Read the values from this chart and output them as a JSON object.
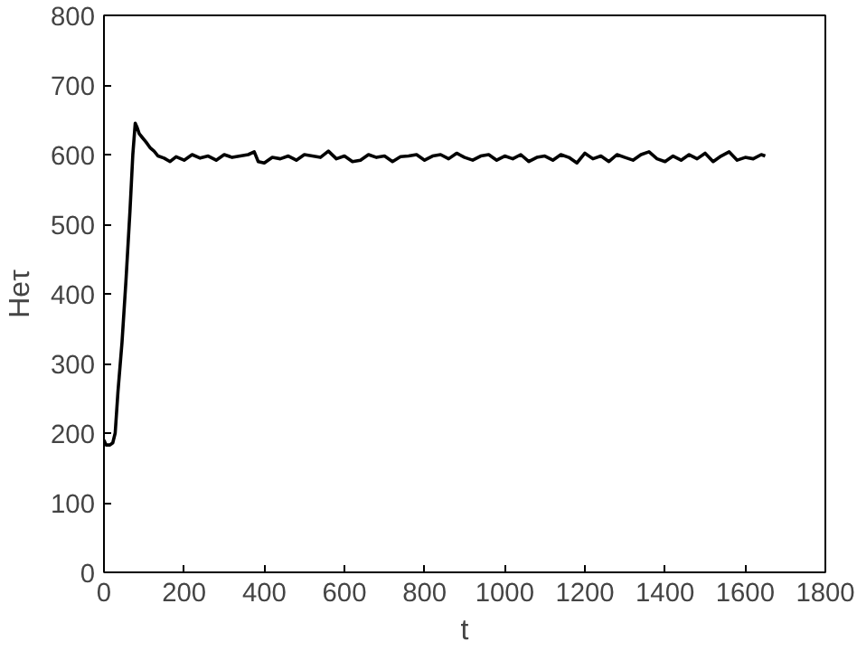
{
  "chart_data": {
    "type": "line",
    "xlabel": "t",
    "ylabel": "Heτ",
    "xlim": [
      0,
      1800
    ],
    "ylim": [
      0,
      800
    ],
    "xticks": [
      0,
      200,
      400,
      600,
      800,
      1000,
      1200,
      1400,
      1600,
      1800
    ],
    "yticks": [
      0,
      100,
      200,
      300,
      400,
      500,
      600,
      700,
      800
    ],
    "grid": false,
    "series": [
      {
        "color": "#000000",
        "x": [
          0,
          5,
          15,
          22,
          28,
          35,
          45,
          55,
          65,
          72,
          78,
          82,
          88,
          95,
          105,
          115,
          125,
          135,
          150,
          165,
          180,
          200,
          220,
          240,
          260,
          280,
          300,
          320,
          340,
          360,
          375,
          385,
          400,
          420,
          440,
          460,
          480,
          500,
          520,
          540,
          560,
          580,
          600,
          620,
          640,
          660,
          680,
          700,
          720,
          740,
          760,
          780,
          800,
          820,
          840,
          860,
          880,
          900,
          920,
          940,
          960,
          980,
          1000,
          1020,
          1040,
          1060,
          1080,
          1100,
          1120,
          1140,
          1160,
          1180,
          1200,
          1220,
          1240,
          1260,
          1280,
          1300,
          1320,
          1340,
          1360,
          1380,
          1400,
          1420,
          1440,
          1460,
          1480,
          1500,
          1520,
          1540,
          1560,
          1580,
          1600,
          1620,
          1640,
          1650
        ],
        "values": [
          190,
          183,
          183,
          186,
          200,
          260,
          330,
          420,
          520,
          600,
          645,
          640,
          630,
          625,
          618,
          610,
          605,
          598,
          595,
          590,
          597,
          592,
          600,
          595,
          598,
          592,
          600,
          596,
          598,
          600,
          604,
          590,
          588,
          596,
          594,
          598,
          592,
          600,
          598,
          596,
          605,
          594,
          598,
          590,
          592,
          600,
          596,
          598,
          590,
          597,
          598,
          600,
          592,
          598,
          600,
          594,
          602,
          596,
          592,
          598,
          600,
          592,
          598,
          594,
          600,
          590,
          596,
          598,
          592,
          600,
          596,
          588,
          602,
          594,
          598,
          590,
          600,
          596,
          592,
          600,
          604,
          594,
          590,
          598,
          592,
          600,
          594,
          602,
          590,
          598,
          604,
          592,
          596,
          594,
          600,
          598
        ]
      }
    ]
  }
}
